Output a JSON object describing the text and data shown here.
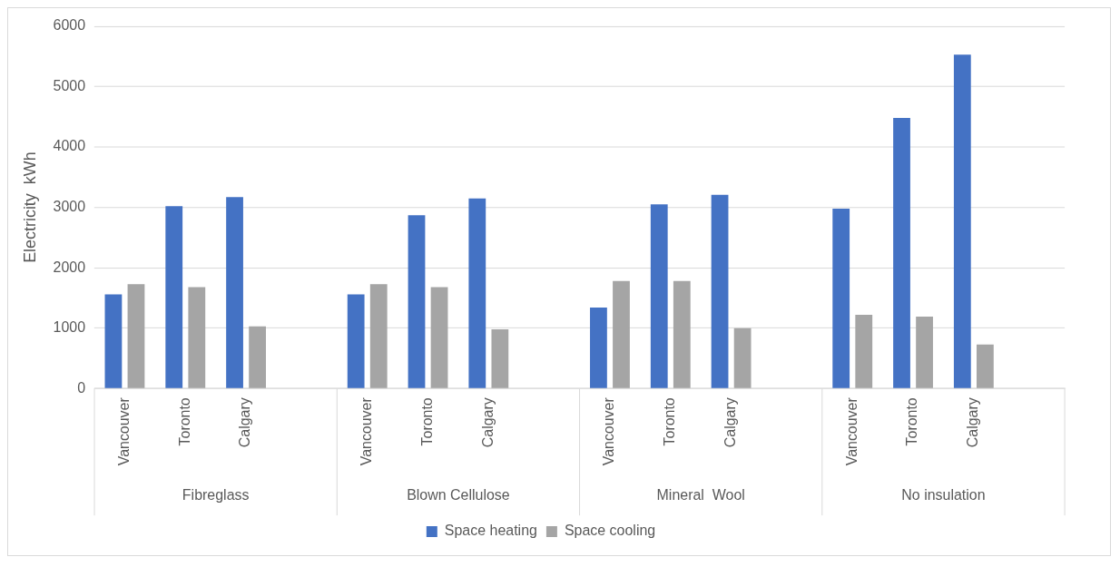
{
  "chart_data": {
    "type": "bar",
    "ylabel": "Electricity  kWh",
    "categories": [
      "Vancouver",
      "Toronto",
      "Calgary",
      null,
      "Vancouver",
      "Toronto",
      "Calgary",
      null,
      "Vancouver",
      "Toronto",
      "Calgary",
      null,
      "Vancouver",
      "Toronto",
      "Calgary",
      null
    ],
    "annotations": [
      "Fibreglass",
      "Blown Cellulose",
      "Mineral  Wool",
      "No insulation"
    ],
    "series": [
      {
        "name": "Space heating",
        "color": "#4472c4",
        "values": [
          1560,
          3020,
          3170,
          null,
          1560,
          2870,
          3150,
          null,
          1340,
          3050,
          3210,
          null,
          2980,
          4480,
          5530,
          null
        ]
      },
      {
        "name": "Space cooling",
        "color": "#a5a5a5",
        "values": [
          1730,
          1680,
          1030,
          null,
          1730,
          1680,
          980,
          null,
          1780,
          1780,
          1000,
          null,
          1220,
          1190,
          730,
          null
        ]
      }
    ],
    "ylim": [
      0,
      6000
    ],
    "yticks": [
      0,
      1000,
      2000,
      3000,
      4000,
      5000,
      6000
    ],
    "grid": "y",
    "legend": "bottom"
  }
}
